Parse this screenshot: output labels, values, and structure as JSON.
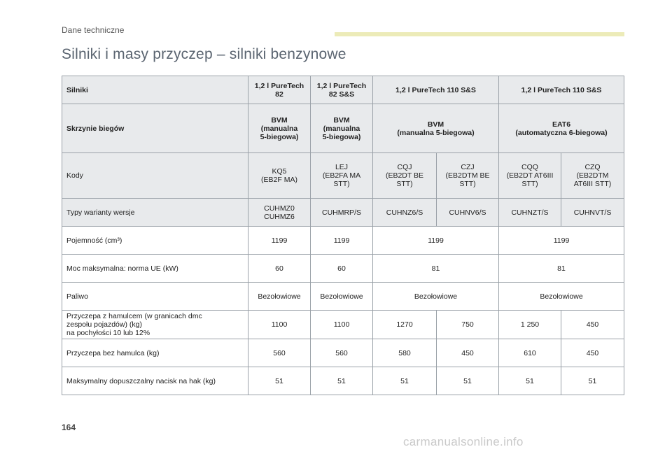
{
  "running_head": "Dane techniczne",
  "page_title": "Silniki i masy przyczep – silniki benzynowe",
  "page_number": "164",
  "watermark": "carmanualsonline.info",
  "table": {
    "engines": {
      "label": "Silniki",
      "c1": "1,2 l PureTech\n82",
      "c2": "1,2 l PureTech\n82 S&S",
      "c3": "1,2 l PureTech 110 S&S",
      "c4": "1,2 l PureTech 110 S&S"
    },
    "gearbox": {
      "label": "Skrzynie biegów",
      "c1": "BVM\n(manualna\n5-biegowa)",
      "c2": "BVM\n(manualna\n5-biegowa)",
      "c3": "BVM\n(manualna 5-biegowa)",
      "c4": "EAT6\n(automatyczna 6-biegowa)"
    },
    "codes": {
      "label": "Kody",
      "v": [
        "KQ5\n(EB2F MA)",
        "LEJ\n(EB2FA MA\nSTT)",
        "CQJ\n(EB2DT BE\nSTT)",
        "CZJ\n(EB2DTM BE\nSTT)",
        "CQQ\n(EB2DT AT6III\nSTT)",
        "CZQ\n(EB2DTM\nAT6III STT)"
      ]
    },
    "variants": {
      "label": "Typy warianty wersje",
      "v": [
        "CUHMZ0\nCUHMZ6",
        "CUHMRP/S",
        "CUHNZ6/S",
        "CUHNV6/S",
        "CUHNZT/S",
        "CUHNVT/S"
      ]
    },
    "capacity": {
      "label": "Pojemność (cm³)",
      "v": [
        "1199",
        "1199",
        "1199",
        "1199"
      ]
    },
    "power": {
      "label": "Moc maksymalna: norma UE (kW)",
      "v": [
        "60",
        "60",
        "81",
        "81"
      ]
    },
    "fuel": {
      "label": "Paliwo",
      "v": [
        "Bezołowiowe",
        "Bezołowiowe",
        "Bezołowiowe",
        "Bezołowiowe"
      ]
    },
    "braked_trailer": {
      "label": "Przyczepa z hamulcem (w granicach dmc\nzespołu pojazdów) (kg)\nna pochyłości 10 lub 12%",
      "v": [
        "1100",
        "1100",
        "1270",
        "750",
        "1 250",
        "450"
      ]
    },
    "unbraked_trailer": {
      "label": "Przyczepa bez hamulca (kg)",
      "v": [
        "560",
        "560",
        "580",
        "450",
        "610",
        "450"
      ]
    },
    "towbar_load": {
      "label": "Maksymalny dopuszczalny nacisk na hak (kg)",
      "v": [
        "51",
        "51",
        "51",
        "51",
        "51",
        "51"
      ]
    }
  },
  "colors": {
    "header_fill": "#e8eaec",
    "accent_bar": "#ecebb8",
    "title": "#5a6470"
  }
}
